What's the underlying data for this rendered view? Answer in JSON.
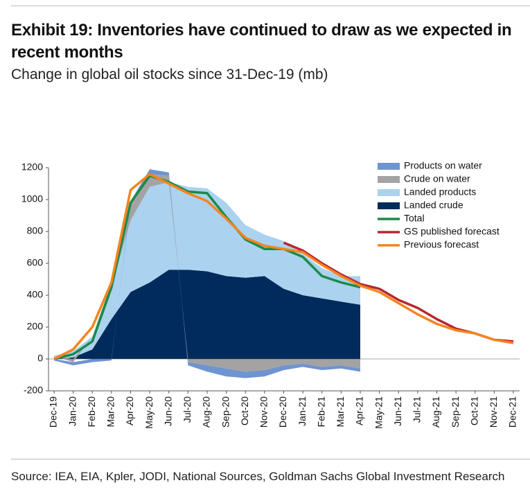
{
  "chart_data": {
    "type": "area-line",
    "title": "Exhibit 19: Inventories have continued to draw as we expected in recent months",
    "subtitle": "Change in global oil stocks since 31-Dec-19 (mb)",
    "source": "Source: IEA, EIA, Kpler, JODI, National Sources, Goldman Sachs Global Investment Research",
    "x": [
      "Dec-19",
      "Jan-20",
      "Feb-20",
      "Mar-20",
      "Apr-20",
      "May-20",
      "Jun-20",
      "Jul-20",
      "Aug-20",
      "Sep-20",
      "Oct-20",
      "Nov-20",
      "Dec-20",
      "Jan-21",
      "Feb-21",
      "Mar-21",
      "Apr-21",
      "May-21",
      "Jun-21",
      "Jul-21",
      "Aug-21",
      "Sep-21",
      "Oct-21",
      "Nov-21",
      "Dec-21"
    ],
    "ylim": [
      -200,
      1200
    ],
    "yticks": [
      -200,
      0,
      200,
      400,
      600,
      800,
      1000,
      1200
    ],
    "series": [
      {
        "name": "Products on water",
        "type": "area",
        "color": "#6f94cf",
        "values": [
          -10,
          -20,
          -20,
          -10,
          20,
          30,
          20,
          -20,
          -40,
          -50,
          -40,
          -40,
          -30,
          -20,
          -20,
          -20,
          -20,
          null,
          null,
          null,
          null,
          null,
          null,
          null,
          null
        ]
      },
      {
        "name": "Crude on water",
        "type": "area",
        "color": "#a3a3a3",
        "values": [
          0,
          -20,
          0,
          30,
          100,
          80,
          40,
          -20,
          -40,
          -60,
          -80,
          -70,
          -40,
          -30,
          -50,
          -40,
          -60,
          null,
          null,
          null,
          null,
          null,
          null,
          null,
          null
        ]
      },
      {
        "name": "Landed products",
        "type": "area",
        "color": "#abd2ef",
        "values": [
          20,
          40,
          80,
          200,
          450,
          600,
          550,
          520,
          520,
          460,
          330,
          260,
          300,
          260,
          190,
          160,
          180,
          null,
          null,
          null,
          null,
          null,
          null,
          null,
          null
        ]
      },
      {
        "name": "Landed crude",
        "type": "area",
        "color": "#002b5c",
        "values": [
          0,
          10,
          60,
          250,
          420,
          480,
          560,
          560,
          550,
          520,
          510,
          520,
          440,
          400,
          380,
          360,
          340,
          null,
          null,
          null,
          null,
          null,
          null,
          null,
          null
        ]
      },
      {
        "name": "Total",
        "type": "line",
        "color": "#1a8a4a",
        "values": [
          0,
          30,
          110,
          450,
          980,
          1150,
          1110,
          1050,
          1040,
          890,
          750,
          690,
          690,
          640,
          520,
          480,
          450,
          null,
          null,
          null,
          null,
          null,
          null,
          null,
          null
        ]
      },
      {
        "name": "GS published forecast",
        "type": "line",
        "color": "#b5282e",
        "values": [
          null,
          null,
          null,
          null,
          null,
          null,
          null,
          null,
          null,
          null,
          null,
          null,
          730,
          680,
          600,
          530,
          470,
          440,
          370,
          320,
          250,
          190,
          160,
          120,
          110
        ]
      },
      {
        "name": "Previous forecast",
        "type": "line",
        "color": "#f5841f",
        "values": [
          0,
          60,
          200,
          480,
          1060,
          1160,
          1100,
          1040,
          990,
          880,
          760,
          710,
          690,
          670,
          590,
          520,
          460,
          420,
          350,
          280,
          220,
          180,
          160,
          120,
          100
        ]
      }
    ]
  }
}
